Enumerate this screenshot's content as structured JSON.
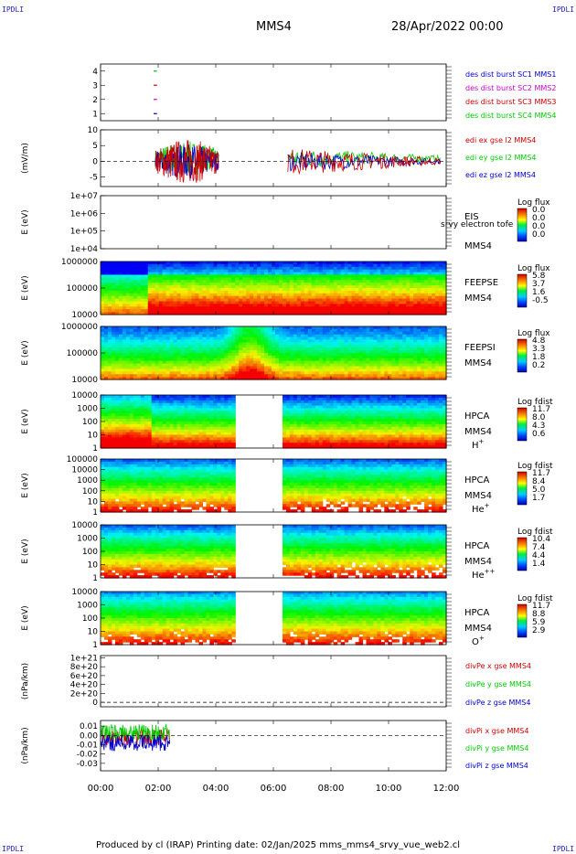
{
  "corners": {
    "tl": "IPDLI",
    "tr": "IPDLI",
    "bl": "IPDLI",
    "br": "IPDLI"
  },
  "header": {
    "title": "MMS4",
    "date": "28/Apr/2022 00:00"
  },
  "footer": {
    "text": "Produced by cl (IRAP)   Printing date: 02/Jan/2025   mms_mms4_srvy_vue_web2.cl"
  },
  "colors": {
    "red": "#cc0000",
    "green": "#00cc00",
    "blue": "#0000cc",
    "magenta": "#cc00cc"
  },
  "chart_data": [
    {
      "type": "line",
      "panel": "burst-intervals",
      "ylim": [
        0.5,
        4.5
      ],
      "yticks": [
        "1",
        "2",
        "3",
        "4"
      ],
      "legend": [
        {
          "label": "des dist burst SC1 MMS1",
          "color": "#0000cc"
        },
        {
          "label": "des dist burst SC2 MMS2",
          "color": "#cc00cc"
        },
        {
          "label": "des dist burst SC3 MMS3",
          "color": "#cc0000"
        },
        {
          "label": "des dist burst SC4 MMS4",
          "color": "#00cc00"
        }
      ],
      "series": [
        {
          "spacecraft": 1,
          "x": [
            1.84,
            1.96
          ],
          "y": [
            1,
            1
          ]
        },
        {
          "spacecraft": 2,
          "x": [
            1.84,
            1.96
          ],
          "y": [
            2,
            2
          ]
        },
        {
          "spacecraft": 3,
          "x": [
            1.84,
            1.96
          ],
          "y": [
            3,
            3
          ]
        },
        {
          "spacecraft": 4,
          "x": [
            1.84,
            1.96
          ],
          "y": [
            4,
            4
          ]
        }
      ]
    },
    {
      "type": "line",
      "panel": "edi-efield",
      "ylabel": "(mV/m)",
      "ylim": [
        -8,
        10
      ],
      "yticks": [
        "10",
        "5",
        "0",
        "-5"
      ],
      "legend": [
        {
          "label": "edi ex gse l2 MMS4",
          "color": "#cc0000"
        },
        {
          "label": "edi ey gse l2 MMS4",
          "color": "#00cc00"
        },
        {
          "label": "edi ez gse l2 MMS4",
          "color": "#0000cc"
        }
      ],
      "segments": [
        [
          1.9,
          4.1
        ],
        [
          6.5,
          11.8
        ]
      ],
      "amplitude": {
        "before_5h": 5,
        "after_6h": 3
      }
    },
    {
      "type": "heatmap",
      "panel": "eis",
      "ylabel": "E (eV)",
      "yticks": [
        "1e+07",
        "1e+06",
        "1e+05",
        "1e+04"
      ],
      "instrument": [
        "EIS",
        "srvy electron tofe",
        "MMS4"
      ],
      "colorbar": {
        "title": "Log flux",
        "ticks": [
          "0.0",
          "0.0",
          "0.0",
          "0.0"
        ]
      }
    },
    {
      "type": "heatmap",
      "panel": "feeps-electron",
      "ylabel": "E (eV)",
      "yticks": [
        "1000000",
        "100000",
        "10000"
      ],
      "instrument": [
        "FEEPSE",
        "MMS4"
      ],
      "colorbar": {
        "title": "Log flux",
        "ticks": [
          "5.8",
          "3.7",
          "1.6",
          "-0.5"
        ]
      }
    },
    {
      "type": "heatmap",
      "panel": "feeps-ion",
      "ylabel": "E (eV)",
      "yticks": [
        "1000000",
        "100000",
        "10000"
      ],
      "instrument": [
        "FEEPSI",
        "MMS4"
      ],
      "colorbar": {
        "title": "Log flux",
        "ticks": [
          "4.8",
          "3.3",
          "1.8",
          "0.2"
        ]
      }
    },
    {
      "type": "heatmap",
      "panel": "hpca-h",
      "ylabel": "E (eV)",
      "yticks": [
        "10000",
        "1000",
        "100",
        "10",
        "1"
      ],
      "instrument": [
        "HPCA",
        "MMS4"
      ],
      "species": "H",
      "charge": "+",
      "gap": [
        4.72,
        6.32
      ],
      "colorbar": {
        "title": "Log fdist",
        "ticks": [
          "11.7",
          "8.0",
          "4.3",
          "0.6"
        ]
      }
    },
    {
      "type": "heatmap",
      "panel": "hpca-he",
      "ylabel": "E (eV)",
      "yticks": [
        "100000",
        "10000",
        "1000",
        "100",
        "10",
        "1"
      ],
      "instrument": [
        "HPCA",
        "MMS4"
      ],
      "species": "He",
      "charge": "+",
      "gap": [
        4.72,
        6.32
      ],
      "colorbar": {
        "title": "Log fdist",
        "ticks": [
          "11.7",
          "8.4",
          "5.0",
          "1.7"
        ]
      }
    },
    {
      "type": "heatmap",
      "panel": "hpca-he2",
      "ylabel": "E (eV)",
      "yticks": [
        "10000",
        "1000",
        "100",
        "10",
        "1"
      ],
      "instrument": [
        "HPCA",
        "MMS4"
      ],
      "species": "He",
      "charge": "++",
      "gap": [
        4.72,
        6.32
      ],
      "colorbar": {
        "title": "Log fdist",
        "ticks": [
          "10.4",
          "7.4",
          "4.4",
          "1.4"
        ]
      }
    },
    {
      "type": "heatmap",
      "panel": "hpca-o",
      "ylabel": "E (eV)",
      "yticks": [
        "10000",
        "1000",
        "100",
        "10",
        "1"
      ],
      "instrument": [
        "HPCA",
        "MMS4"
      ],
      "species": "O",
      "charge": "+",
      "gap": [
        4.72,
        6.32
      ],
      "colorbar": {
        "title": "Log fdist",
        "ticks": [
          "11.7",
          "8.8",
          "5.9",
          "2.9"
        ]
      }
    },
    {
      "type": "line",
      "panel": "divpe",
      "ylabel": "(nPa/km)",
      "ylim": [
        -1e+20,
        1.05e+21
      ],
      "yticks": [
        "1e+21",
        "8e+20",
        "6e+20",
        "4e+20",
        "2e+20",
        "0"
      ],
      "legend": [
        {
          "label": "divPe x gse MMS4",
          "color": "#cc0000"
        },
        {
          "label": "divPe y gse MMS4",
          "color": "#00cc00"
        },
        {
          "label": "divPe z gse MMS4",
          "color": "#0000cc"
        }
      ]
    },
    {
      "type": "line",
      "panel": "divpi",
      "ylabel": "(nPa/km)",
      "ylim": [
        -0.038,
        0.016
      ],
      "yticks": [
        "0.01",
        "0.00",
        "-0.01",
        "-0.02",
        "-0.03"
      ],
      "legend": [
        {
          "label": "divPi x gse MMS4",
          "color": "#cc0000"
        },
        {
          "label": "divPi y gse MMS4",
          "color": "#00cc00"
        },
        {
          "label": "divPi z gse MMS4",
          "color": "#0000cc"
        }
      ],
      "segment": [
        0,
        2.4
      ]
    }
  ],
  "x_axis": {
    "range_hours": [
      0,
      12
    ],
    "ticks": [
      "00:00",
      "02:00",
      "04:00",
      "06:00",
      "08:00",
      "10:00",
      "12:00"
    ]
  }
}
